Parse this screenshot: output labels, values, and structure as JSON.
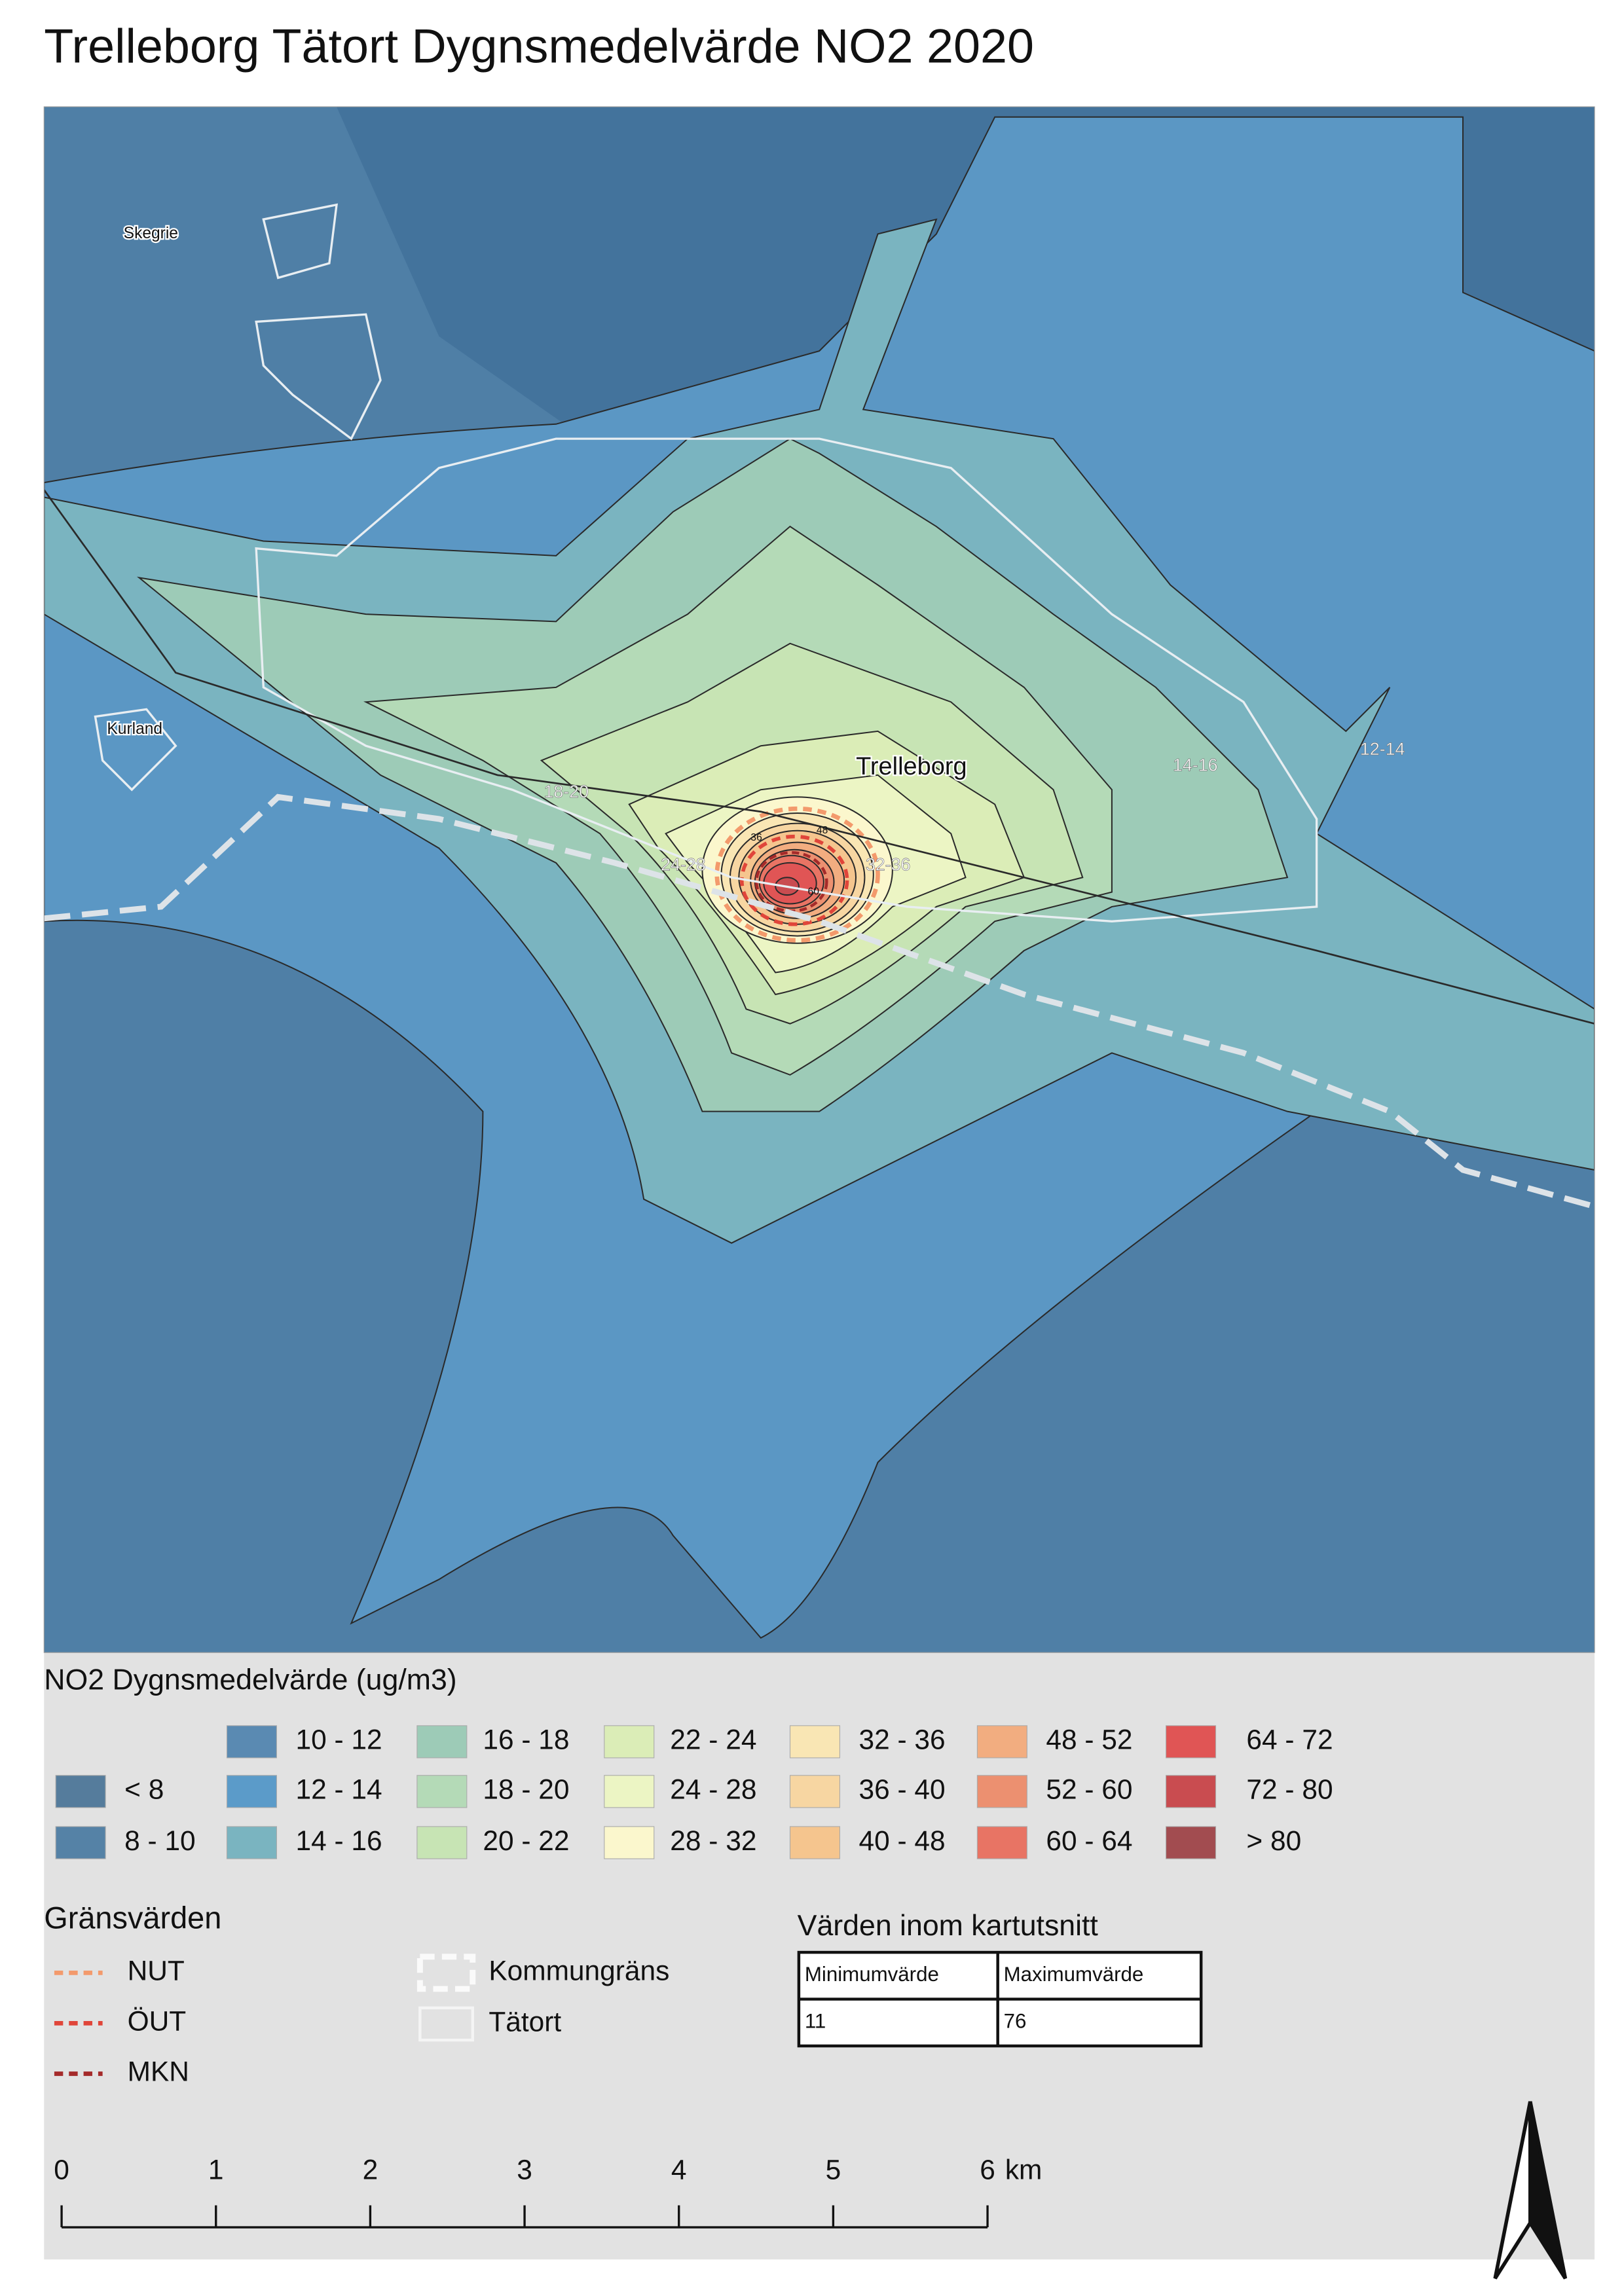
{
  "title": "Trelleborg Tätort Dygnsmedelvärde NO2 2020",
  "map": {
    "places": [
      "Skegrie",
      "Kurland",
      "Trelleborg"
    ],
    "contour_labels": [
      "18-20",
      "24-28",
      "32-36",
      "14-16",
      "12-14",
      "36",
      "48",
      "60"
    ]
  },
  "legend": {
    "title": "NO2 Dygnsmedelvärde (ug/m3)",
    "items": [
      {
        "label": "< 8",
        "color": "#557c9c"
      },
      {
        "label": "8 - 10",
        "color": "#5582a6"
      },
      {
        "label": "10 - 12",
        "color": "#5a8ab2"
      },
      {
        "label": "12 - 14",
        "color": "#5b9bc9"
      },
      {
        "label": "14 - 16",
        "color": "#7ab4c0"
      },
      {
        "label": "16 - 18",
        "color": "#9dcbb7"
      },
      {
        "label": "18 - 20",
        "color": "#b4dab7"
      },
      {
        "label": "20 - 22",
        "color": "#c7e4b4"
      },
      {
        "label": "22 - 24",
        "color": "#dbedb7"
      },
      {
        "label": "24 - 28",
        "color": "#ecf5c4"
      },
      {
        "label": "28 - 32",
        "color": "#fbf7cd"
      },
      {
        "label": "32 - 36",
        "color": "#f9e6b4"
      },
      {
        "label": "36 - 40",
        "color": "#f7d6a2"
      },
      {
        "label": "40 - 48",
        "color": "#f5c58e"
      },
      {
        "label": "48 - 52",
        "color": "#f2ad80"
      },
      {
        "label": "52 - 60",
        "color": "#ec9070"
      },
      {
        "label": "60 - 64",
        "color": "#e87464"
      },
      {
        "label": "64 - 72",
        "color": "#e05555"
      },
      {
        "label": "72 - 80",
        "color": "#c94c50"
      },
      {
        "label": "> 80",
        "color": "#a24c50"
      }
    ]
  },
  "limits": {
    "title": "Gränsvärden",
    "items": [
      {
        "label": "NUT",
        "color": "#f39a6c"
      },
      {
        "label": "ÖUT",
        "color": "#e0453a"
      },
      {
        "label": "MKN",
        "color": "#a52a2a"
      }
    ]
  },
  "boundaries": [
    "Kommungräns",
    "Tätort"
  ],
  "extent_values": {
    "title": "Värden inom kartutsnitt",
    "header": [
      "Minimumvärde",
      "Maximumvärde"
    ],
    "rows": [
      [
        11,
        76
      ]
    ]
  },
  "scale_bar": {
    "ticks": [
      0,
      1,
      2,
      3,
      4,
      5,
      6
    ],
    "unit": "km"
  }
}
